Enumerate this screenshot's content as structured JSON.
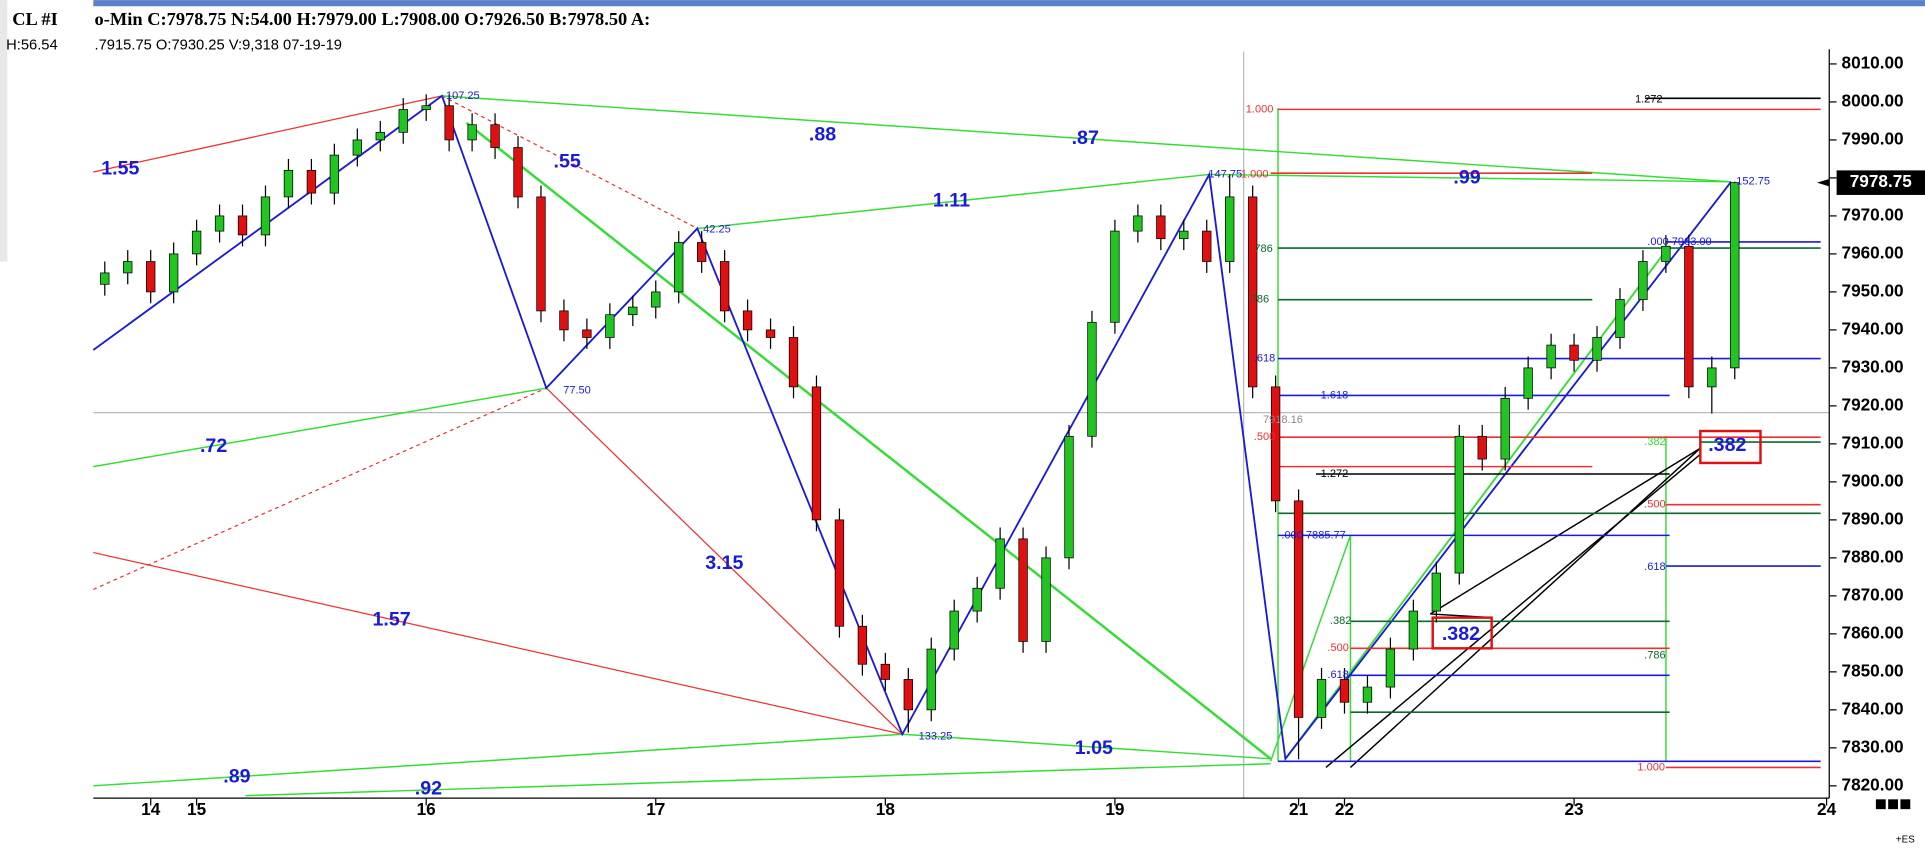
{
  "header": {
    "symbol": "CL #I",
    "quote": "o-Min C:7978.75 N:54.00 H:7979.00 L:7908.00 O:7926.50 B:7978.50 A:",
    "left_sub": "H:56.54",
    "sub": ".7915.75 O:7930.25 V:9,318 07-19-19"
  },
  "footer": "+ES",
  "chart_data": {
    "type": "candlestick",
    "categories": [
      null,
      null,
      "14",
      null,
      "15",
      null,
      null,
      null,
      null,
      null,
      null,
      null,
      null,
      null,
      "16",
      null,
      null,
      null,
      null,
      null,
      null,
      null,
      null,
      null,
      "17",
      null,
      null,
      null,
      null,
      null,
      null,
      null,
      null,
      null,
      "18",
      null,
      null,
      null,
      null,
      null,
      null,
      null,
      null,
      null,
      "19",
      null,
      null,
      null,
      null,
      null,
      null,
      null,
      "21",
      null,
      "22",
      null,
      null,
      null,
      null,
      null,
      null,
      null,
      null,
      null,
      "23",
      null,
      null,
      null,
      null,
      null,
      null,
      null,
      null,
      null,
      null,
      "24"
    ],
    "open": [
      7952,
      7955,
      7958,
      7950,
      7960,
      7966,
      7970,
      7965,
      7975,
      7982,
      7976,
      7986,
      7990,
      7992,
      7998,
      7999,
      7990,
      7994,
      7988,
      7975,
      7945,
      7940,
      7938,
      7944,
      7946,
      7950,
      7963,
      7958,
      7945,
      7940,
      7938,
      7925,
      7890,
      7862,
      7852,
      7848,
      7840,
      7856,
      7866,
      7872,
      7885,
      7858,
      7880,
      7912,
      7942,
      7966,
      7970,
      7964,
      7966,
      7958,
      7975,
      7925,
      7895,
      7838,
      7848,
      7842,
      7846,
      7856,
      7866,
      7876,
      7912,
      7906,
      7922,
      7930,
      7936,
      7932,
      7938,
      7948,
      7958,
      7962,
      7925,
      7930,
      null,
      null,
      null,
      null
    ],
    "high": [
      7958,
      7961,
      7961,
      7963,
      7969,
      7973,
      7973,
      7978,
      7985,
      7985,
      7989,
      7993,
      7995,
      8001,
      8002,
      8002,
      7997,
      7997,
      7991,
      7978,
      7948,
      7943,
      7947,
      7949,
      7953,
      7966,
      7966,
      7961,
      7948,
      7943,
      7941,
      7928,
      7893,
      7865,
      7855,
      7851,
      7859,
      7869,
      7875,
      7888,
      7888,
      7883,
      7915,
      7945,
      7969,
      7973,
      7973,
      7969,
      7969,
      7981,
      7978,
      7928,
      7898,
      7851,
      7851,
      7849,
      7859,
      7869,
      7879,
      7915,
      7915,
      7925,
      7933,
      7939,
      7939,
      7941,
      7951,
      7961,
      7965,
      7965,
      7933,
      7979,
      null,
      null,
      null,
      null
    ],
    "low": [
      7949,
      7952,
      7947,
      7947,
      7957,
      7963,
      7962,
      7962,
      7972,
      7973,
      7973,
      7983,
      7987,
      7989,
      7995,
      7987,
      7987,
      7985,
      7972,
      7942,
      7937,
      7935,
      7935,
      7941,
      7943,
      7947,
      7955,
      7942,
      7937,
      7935,
      7922,
      7887,
      7859,
      7849,
      7845,
      7834,
      7837,
      7853,
      7863,
      7869,
      7855,
      7855,
      7877,
      7909,
      7939,
      7963,
      7961,
      7961,
      7955,
      7955,
      7922,
      7892,
      7827,
      7835,
      7839,
      7839,
      7843,
      7853,
      7863,
      7873,
      7903,
      7903,
      7919,
      7927,
      7929,
      7929,
      7935,
      7945,
      7955,
      7922,
      7918,
      7927,
      null,
      null,
      null,
      null
    ],
    "close": [
      7955,
      7958,
      7950,
      7960,
      7966,
      7970,
      7965,
      7975,
      7982,
      7976,
      7986,
      7990,
      7992,
      7998,
      7999,
      7990,
      7994,
      7988,
      7975,
      7945,
      7940,
      7938,
      7944,
      7946,
      7950,
      7963,
      7958,
      7945,
      7940,
      7938,
      7925,
      7890,
      7862,
      7852,
      7848,
      7840,
      7856,
      7866,
      7872,
      7885,
      7858,
      7880,
      7912,
      7942,
      7966,
      7970,
      7964,
      7966,
      7958,
      7975,
      7925,
      7895,
      7838,
      7848,
      7842,
      7846,
      7856,
      7866,
      7876,
      7912,
      7906,
      7922,
      7930,
      7936,
      7932,
      7938,
      7948,
      7958,
      7962,
      7925,
      7930,
      7978.75,
      null,
      null,
      null,
      null
    ],
    "up_color": "#22c422",
    "down_color": "#e01010",
    "ylim": [
      7817,
      8013
    ],
    "yticks": [
      {
        "value": 7820,
        "label": "7820.00"
      },
      {
        "value": 7830,
        "label": "7830.00"
      },
      {
        "value": 7840,
        "label": "7840.00"
      },
      {
        "value": 7850,
        "label": "7850.00"
      },
      {
        "value": 7860,
        "label": "7860.00"
      },
      {
        "value": 7870,
        "label": "7870.00"
      },
      {
        "value": 7880,
        "label": "7880.00"
      },
      {
        "value": 7890,
        "label": "7890.00"
      },
      {
        "value": 7900,
        "label": "7900.00"
      },
      {
        "value": 7910,
        "label": "7910.00"
      },
      {
        "value": 7920,
        "label": "7920.00"
      },
      {
        "value": 7930,
        "label": "7930.00"
      },
      {
        "value": 7940,
        "label": "7940.00"
      },
      {
        "value": 7950,
        "label": "7950.00"
      },
      {
        "value": 7960,
        "label": "7960.00"
      },
      {
        "value": 7970,
        "label": "7970.00"
      },
      {
        "value": 7980,
        "label": "7980.00"
      },
      {
        "value": 7990,
        "label": "7990.00"
      },
      {
        "value": 8000,
        "label": "8000.00"
      },
      {
        "value": 8010,
        "label": "8010.00"
      }
    ],
    "last_price": 7978.75,
    "annotations": [
      "1.55",
      ".55",
      ".88",
      ".87",
      "1.11",
      ".99",
      ".72",
      "3.15",
      "1.57",
      "1.05",
      ".89",
      ".92",
      ".382",
      ".382",
      "107.25",
      "42.25",
      "77.50",
      "133.25",
      "147.75",
      "152.75",
      "1.272",
      "1.000",
      ".786",
      ".786",
      ".618",
      "1.618",
      "1.272",
      ".500",
      ".382",
      ".500",
      ".618",
      ".786",
      "1.000",
      ".000  7963.00",
      ".000  7885.77",
      "7918.16",
      "1.000",
      ".382",
      ".500",
      ".618"
    ]
  }
}
